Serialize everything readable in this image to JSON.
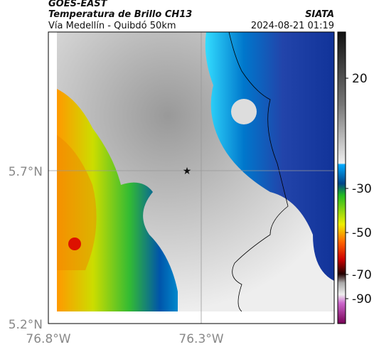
{
  "header": {
    "product": "GOES-EAST",
    "title": "Temperatura de Brillo CH13",
    "subtitle": "Vía Medellín - Quibdó 50km",
    "agency": "SIATA",
    "timestamp": "2024-08-21 01:19"
  },
  "axes": {
    "lat_labels": [
      "5.7°N",
      "5.2°N"
    ],
    "lon_labels": [
      "76.8°W",
      "76.3°W"
    ]
  },
  "colorbar": {
    "ticks": [
      "20",
      "-30",
      "-50",
      "-70",
      "-90"
    ]
  }
}
